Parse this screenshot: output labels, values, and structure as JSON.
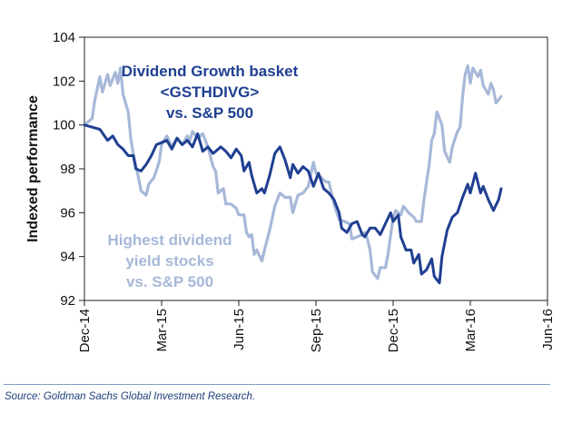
{
  "chart_data": {
    "type": "line",
    "title": "",
    "xlabel": "",
    "ylabel": "Indexed performance",
    "ylim": [
      92,
      104
    ],
    "yticks": [
      92,
      94,
      96,
      98,
      100,
      102,
      104
    ],
    "xlim": [
      0,
      18
    ],
    "x_unit": "months since Dec-14",
    "x_categories": [
      "Dec-14",
      "Mar-15",
      "Jun-15",
      "Sep-15",
      "Dec-15",
      "Mar-16",
      "Jun-16"
    ],
    "x_tick_positions": [
      0,
      3,
      6,
      9,
      12,
      15,
      18
    ],
    "grid": false,
    "series": [
      {
        "name": "Dividend Growth basket <GSTHDIVG> vs. S&P 500",
        "color": "#1f3f91",
        "points": [
          [
            0,
            100.0
          ],
          [
            0.3,
            99.9
          ],
          [
            0.6,
            99.8
          ],
          [
            0.9,
            99.3
          ],
          [
            1.1,
            99.5
          ],
          [
            1.3,
            99.1
          ],
          [
            1.5,
            98.9
          ],
          [
            1.7,
            98.6
          ],
          [
            1.9,
            98.6
          ],
          [
            2.0,
            98.0
          ],
          [
            2.2,
            97.9
          ],
          [
            2.4,
            98.2
          ],
          [
            2.6,
            98.6
          ],
          [
            2.8,
            99.1
          ],
          [
            3.0,
            99.2
          ],
          [
            3.2,
            99.3
          ],
          [
            3.4,
            98.9
          ],
          [
            3.6,
            99.4
          ],
          [
            3.8,
            99.1
          ],
          [
            4.0,
            99.3
          ],
          [
            4.2,
            99.0
          ],
          [
            4.4,
            99.6
          ],
          [
            4.6,
            98.8
          ],
          [
            4.8,
            99.0
          ],
          [
            5.0,
            98.7
          ],
          [
            5.3,
            99.0
          ],
          [
            5.5,
            98.8
          ],
          [
            5.7,
            98.5
          ],
          [
            5.9,
            98.9
          ],
          [
            6.1,
            98.6
          ],
          [
            6.2,
            97.9
          ],
          [
            6.4,
            98.3
          ],
          [
            6.5,
            97.7
          ],
          [
            6.7,
            96.9
          ],
          [
            6.9,
            97.1
          ],
          [
            7.0,
            96.9
          ],
          [
            7.2,
            97.7
          ],
          [
            7.4,
            98.7
          ],
          [
            7.6,
            99.0
          ],
          [
            7.8,
            98.4
          ],
          [
            8.0,
            97.6
          ],
          [
            8.1,
            98.2
          ],
          [
            8.3,
            97.8
          ],
          [
            8.5,
            98.1
          ],
          [
            8.7,
            97.9
          ],
          [
            8.9,
            97.2
          ],
          [
            9.1,
            97.8
          ],
          [
            9.3,
            97.1
          ],
          [
            9.5,
            96.9
          ],
          [
            9.7,
            96.6
          ],
          [
            9.9,
            96.0
          ],
          [
            10.0,
            95.3
          ],
          [
            10.2,
            95.1
          ],
          [
            10.4,
            95.5
          ],
          [
            10.6,
            95.6
          ],
          [
            10.8,
            95.0
          ],
          [
            10.9,
            94.9
          ],
          [
            11.1,
            95.3
          ],
          [
            11.3,
            95.3
          ],
          [
            11.5,
            95.0
          ],
          [
            11.7,
            95.5
          ],
          [
            11.9,
            96.0
          ],
          [
            12.0,
            95.6
          ],
          [
            12.2,
            95.9
          ],
          [
            12.3,
            94.9
          ],
          [
            12.5,
            94.3
          ],
          [
            12.7,
            94.3
          ],
          [
            12.8,
            93.7
          ],
          [
            13.0,
            94.1
          ],
          [
            13.1,
            93.2
          ],
          [
            13.3,
            93.4
          ],
          [
            13.5,
            93.9
          ],
          [
            13.6,
            93.1
          ],
          [
            13.8,
            92.8
          ],
          [
            13.9,
            94.0
          ],
          [
            14.1,
            95.2
          ],
          [
            14.3,
            95.8
          ],
          [
            14.5,
            96.0
          ],
          [
            14.7,
            96.7
          ],
          [
            14.9,
            97.3
          ],
          [
            15.0,
            96.9
          ],
          [
            15.2,
            97.8
          ],
          [
            15.4,
            96.9
          ],
          [
            15.5,
            97.2
          ],
          [
            15.7,
            96.6
          ],
          [
            15.9,
            96.1
          ],
          [
            16.1,
            96.6
          ],
          [
            16.2,
            97.1
          ]
        ]
      },
      {
        "name": "Highest dividend yield stocks vs. S&P 500",
        "color": "#a7b8d8",
        "points": [
          [
            0,
            100.0
          ],
          [
            0.3,
            100.3
          ],
          [
            0.4,
            101.1
          ],
          [
            0.6,
            102.2
          ],
          [
            0.7,
            101.5
          ],
          [
            0.9,
            102.3
          ],
          [
            1.0,
            101.8
          ],
          [
            1.2,
            102.4
          ],
          [
            1.3,
            101.9
          ],
          [
            1.4,
            102.6
          ],
          [
            1.5,
            101.4
          ],
          [
            1.7,
            100.6
          ],
          [
            1.8,
            99.4
          ],
          [
            1.9,
            98.7
          ],
          [
            2.1,
            97.6
          ],
          [
            2.2,
            97.0
          ],
          [
            2.4,
            96.8
          ],
          [
            2.5,
            97.3
          ],
          [
            2.7,
            97.6
          ],
          [
            2.9,
            98.3
          ],
          [
            3.0,
            99.1
          ],
          [
            3.2,
            99.5
          ],
          [
            3.4,
            99.0
          ],
          [
            3.6,
            99.4
          ],
          [
            3.8,
            99.1
          ],
          [
            4.0,
            99.5
          ],
          [
            4.1,
            99.3
          ],
          [
            4.2,
            99.7
          ],
          [
            4.4,
            99.4
          ],
          [
            4.6,
            99.6
          ],
          [
            4.8,
            99.0
          ],
          [
            5.0,
            98.1
          ],
          [
            5.1,
            97.9
          ],
          [
            5.2,
            96.9
          ],
          [
            5.4,
            97.1
          ],
          [
            5.5,
            96.4
          ],
          [
            5.7,
            96.4
          ],
          [
            5.9,
            96.2
          ],
          [
            6.0,
            95.9
          ],
          [
            6.2,
            95.9
          ],
          [
            6.3,
            95.1
          ],
          [
            6.4,
            94.9
          ],
          [
            6.5,
            95.0
          ],
          [
            6.6,
            94.1
          ],
          [
            6.7,
            94.3
          ],
          [
            6.9,
            93.8
          ],
          [
            7.0,
            94.3
          ],
          [
            7.2,
            95.2
          ],
          [
            7.4,
            96.3
          ],
          [
            7.6,
            96.9
          ],
          [
            7.8,
            96.7
          ],
          [
            8.0,
            96.7
          ],
          [
            8.1,
            96.0
          ],
          [
            8.3,
            96.8
          ],
          [
            8.5,
            96.9
          ],
          [
            8.7,
            97.2
          ],
          [
            8.9,
            98.3
          ],
          [
            9.0,
            97.8
          ],
          [
            9.2,
            97.6
          ],
          [
            9.4,
            97.4
          ],
          [
            9.5,
            97.4
          ],
          [
            9.7,
            96.4
          ],
          [
            9.9,
            95.7
          ],
          [
            10.1,
            95.6
          ],
          [
            10.3,
            95.5
          ],
          [
            10.4,
            94.8
          ],
          [
            10.6,
            94.9
          ],
          [
            10.8,
            95.0
          ],
          [
            10.9,
            95.1
          ],
          [
            11.0,
            94.8
          ],
          [
            11.1,
            94.3
          ],
          [
            11.2,
            93.3
          ],
          [
            11.4,
            93.0
          ],
          [
            11.5,
            93.5
          ],
          [
            11.7,
            93.5
          ],
          [
            11.8,
            94.1
          ],
          [
            12.0,
            95.8
          ],
          [
            12.1,
            96.1
          ],
          [
            12.3,
            95.9
          ],
          [
            12.4,
            96.3
          ],
          [
            12.6,
            96.0
          ],
          [
            12.8,
            95.8
          ],
          [
            12.9,
            95.6
          ],
          [
            13.1,
            95.6
          ],
          [
            13.2,
            96.6
          ],
          [
            13.4,
            98.2
          ],
          [
            13.5,
            99.3
          ],
          [
            13.6,
            99.6
          ],
          [
            13.7,
            100.6
          ],
          [
            13.9,
            100.0
          ],
          [
            14.0,
            98.8
          ],
          [
            14.2,
            98.3
          ],
          [
            14.3,
            99.0
          ],
          [
            14.5,
            99.7
          ],
          [
            14.6,
            99.9
          ],
          [
            14.7,
            101.3
          ],
          [
            14.8,
            102.3
          ],
          [
            14.9,
            102.7
          ],
          [
            15.0,
            101.9
          ],
          [
            15.1,
            102.6
          ],
          [
            15.3,
            102.2
          ],
          [
            15.4,
            102.5
          ],
          [
            15.5,
            101.8
          ],
          [
            15.7,
            101.4
          ],
          [
            15.8,
            101.9
          ],
          [
            15.9,
            101.6
          ],
          [
            16.0,
            101.0
          ],
          [
            16.2,
            101.3
          ]
        ]
      }
    ],
    "annotations": [
      {
        "lines": [
          "Dividend Growth basket",
          "<GSTHDIVG>",
          "vs. S&P 500"
        ],
        "color": "#1f3f91"
      },
      {
        "lines": [
          "Highest dividend",
          "yield stocks",
          "vs. S&P 500"
        ],
        "color": "#a7b8d8"
      }
    ]
  },
  "source_note": "Source: Goldman Sachs Global Investment Research."
}
